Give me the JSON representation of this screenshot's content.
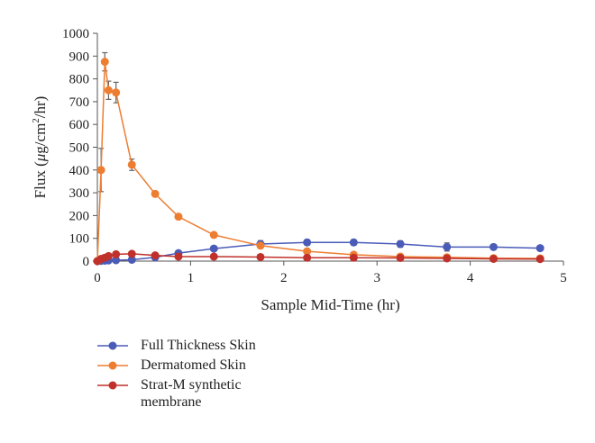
{
  "chart_data": {
    "type": "line",
    "title": "",
    "xlabel": "Sample Mid-Time (hr)",
    "ylabel_parts": [
      "Flux (",
      "μ",
      "g/cm",
      "2",
      "/hr)"
    ],
    "xlim": [
      0,
      5
    ],
    "ylim": [
      0,
      1000
    ],
    "x_ticks": [
      0,
      1,
      2,
      3,
      4,
      5
    ],
    "y_ticks": [
      0,
      100,
      200,
      300,
      400,
      500,
      600,
      700,
      800,
      900,
      1000
    ],
    "grid": false,
    "legend_position": "bottom-left",
    "series": [
      {
        "name": "Full Thickness Skin",
        "color": "#4a5bb8",
        "x": [
          0.0,
          0.04,
          0.08,
          0.12,
          0.2,
          0.37,
          0.62,
          0.87,
          1.25,
          1.75,
          2.25,
          2.75,
          3.25,
          3.75,
          4.25,
          4.75
        ],
        "y": [
          0,
          1,
          2,
          3,
          4,
          6,
          17,
          35,
          55,
          75,
          82,
          82,
          75,
          62,
          62,
          57
        ],
        "err": [
          0,
          0,
          0,
          0,
          0,
          0,
          0,
          0,
          8,
          15,
          12,
          12,
          14,
          18,
          8,
          8
        ]
      },
      {
        "name": "Dermatomed Skin",
        "color": "#ed7d31",
        "x": [
          0.0,
          0.04,
          0.08,
          0.12,
          0.2,
          0.37,
          0.62,
          0.87,
          1.25,
          1.75,
          2.25,
          2.75,
          3.25,
          3.75,
          4.25,
          4.75
        ],
        "y": [
          0,
          400,
          875,
          750,
          740,
          423,
          295,
          195,
          115,
          68,
          43,
          28,
          20,
          17,
          13,
          12
        ],
        "err": [
          0,
          95,
          40,
          40,
          45,
          25,
          10,
          5,
          5,
          5,
          4,
          3,
          3,
          3,
          2,
          2
        ]
      },
      {
        "name": "Strat-M synthetic membrane",
        "color": "#c0312b",
        "x": [
          0.0,
          0.04,
          0.08,
          0.12,
          0.2,
          0.37,
          0.62,
          0.87,
          1.25,
          1.75,
          2.25,
          2.75,
          3.25,
          3.75,
          4.25,
          4.75
        ],
        "y": [
          0,
          10,
          15,
          22,
          30,
          32,
          25,
          20,
          20,
          18,
          15,
          15,
          14,
          12,
          10,
          9
        ],
        "err": [
          0,
          2,
          2,
          3,
          3,
          4,
          3,
          2,
          2,
          2,
          2,
          2,
          2,
          2,
          2,
          2
        ]
      }
    ]
  },
  "legend": {
    "items": [
      {
        "line1": "Full Thickness Skin",
        "line2": ""
      },
      {
        "line1": "Dermatomed Skin",
        "line2": ""
      },
      {
        "line1": "Strat-M synthetic",
        "line2": "membrane"
      }
    ]
  }
}
